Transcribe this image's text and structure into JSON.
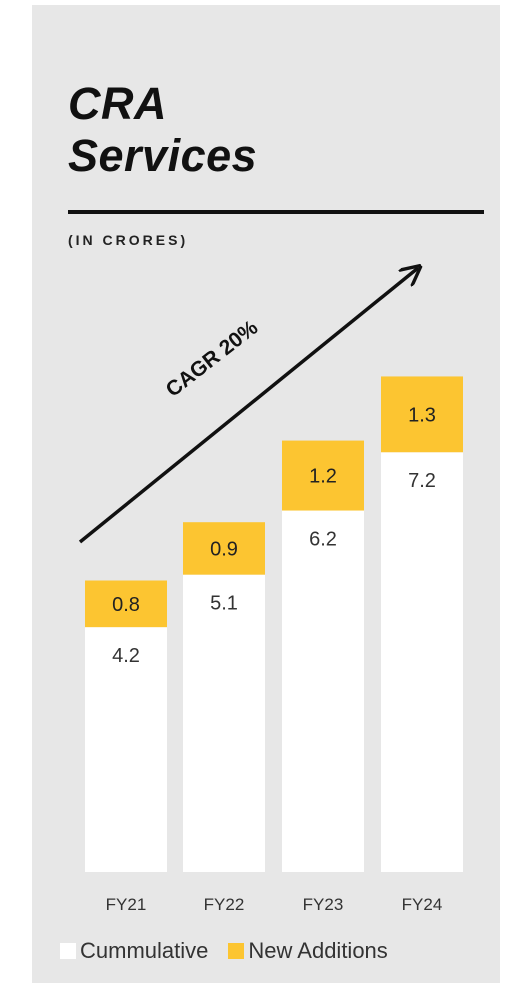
{
  "title": [
    "CRA",
    "Services"
  ],
  "subtitle": "(IN CRORES)",
  "annotation": "CAGR 20%",
  "colors": {
    "panel": "#e7e7e7",
    "cumulative": "#ffffff",
    "new_additions": "#fcc531",
    "text": "#333333"
  },
  "chart_data": {
    "type": "bar",
    "stacked": true,
    "categories": [
      "FY21",
      "FY22",
      "FY23",
      "FY24"
    ],
    "series": [
      {
        "name": "Cummulative",
        "values": [
          4.2,
          5.1,
          6.2,
          7.2
        ],
        "labels": [
          "4.2",
          "5.1",
          "6.2",
          "7.2"
        ]
      },
      {
        "name": "New Additions",
        "values": [
          0.8,
          0.9,
          1.2,
          1.3
        ],
        "labels": [
          "0.8",
          "0.9",
          "1.2",
          "1.3"
        ]
      }
    ],
    "grid": false,
    "legend": "bottom"
  }
}
